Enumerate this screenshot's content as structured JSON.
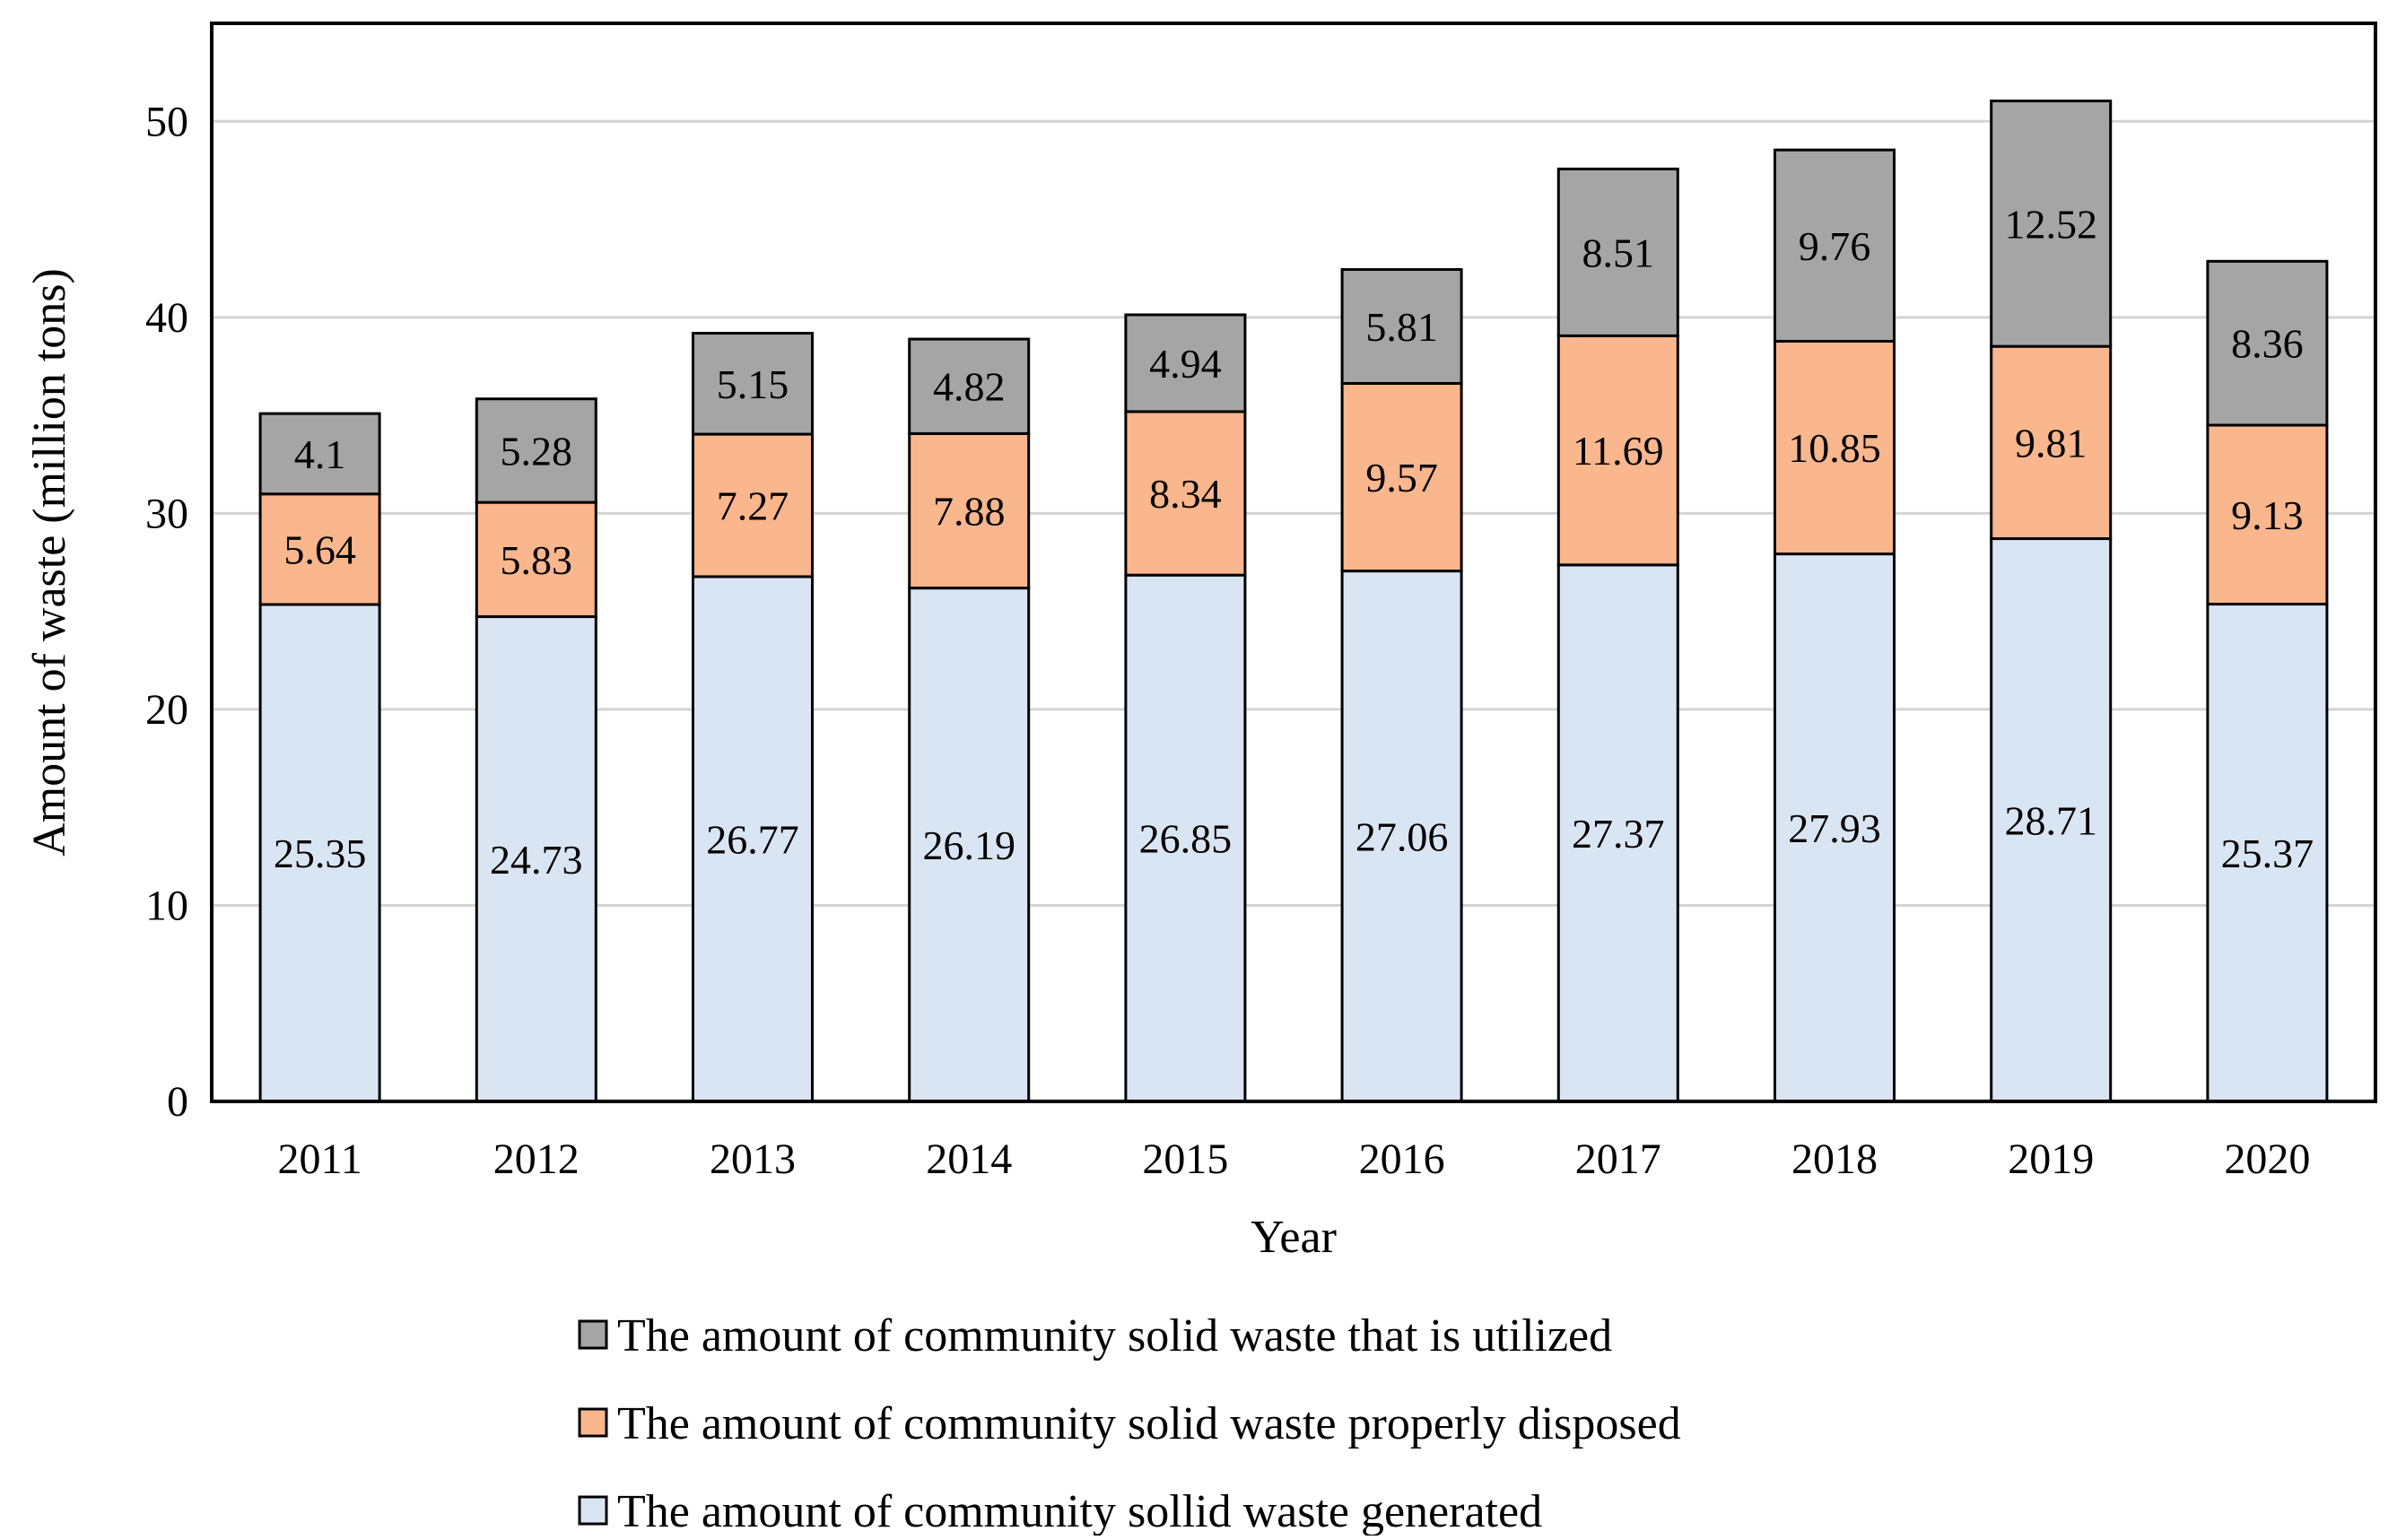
{
  "chart_data": {
    "type": "bar",
    "stacked": true,
    "title": "",
    "xlabel": "Year",
    "ylabel": "Amount of waste  (million tons)",
    "ylim": [
      0,
      55
    ],
    "yticks": [
      0,
      10,
      20,
      30,
      40,
      50
    ],
    "grid": true,
    "legend_position": "bottom",
    "categories": [
      "2011",
      "2012",
      "2013",
      "2014",
      "2015",
      "2016",
      "2017",
      "2018",
      "2019",
      "2020"
    ],
    "series": [
      {
        "name": "The amount of community sollid waste generated",
        "color": "#dae5f3",
        "values": [
          25.35,
          24.73,
          26.77,
          26.19,
          26.85,
          27.06,
          27.37,
          27.93,
          28.71,
          25.37
        ],
        "labels": [
          "25.35",
          "24.73",
          "26.77",
          "26.19",
          "26.85",
          "27.06",
          "27.37",
          "27.93",
          "28.71",
          "25.37"
        ]
      },
      {
        "name": "The amount of community solid waste properly disposed",
        "color": "#fab68c",
        "values": [
          5.64,
          5.83,
          7.27,
          7.88,
          8.34,
          9.57,
          11.69,
          10.85,
          9.81,
          9.13
        ],
        "labels": [
          "5.64",
          "5.83",
          "7.27",
          "7.88",
          "8.34",
          "9.57",
          "11.69",
          "10.85",
          "9.81",
          "9.13"
        ]
      },
      {
        "name": "The amount of community solid waste that is utilized",
        "color": "#a5a5a5",
        "values": [
          4.1,
          5.28,
          5.15,
          4.82,
          4.94,
          5.81,
          8.51,
          9.76,
          12.52,
          8.36
        ],
        "labels": [
          "4.1",
          "5.28",
          "5.15",
          "4.82",
          "4.94",
          "5.81",
          "8.51",
          "9.76",
          "12.52",
          "8.36"
        ]
      }
    ],
    "legend_order": [
      2,
      1,
      0
    ]
  }
}
